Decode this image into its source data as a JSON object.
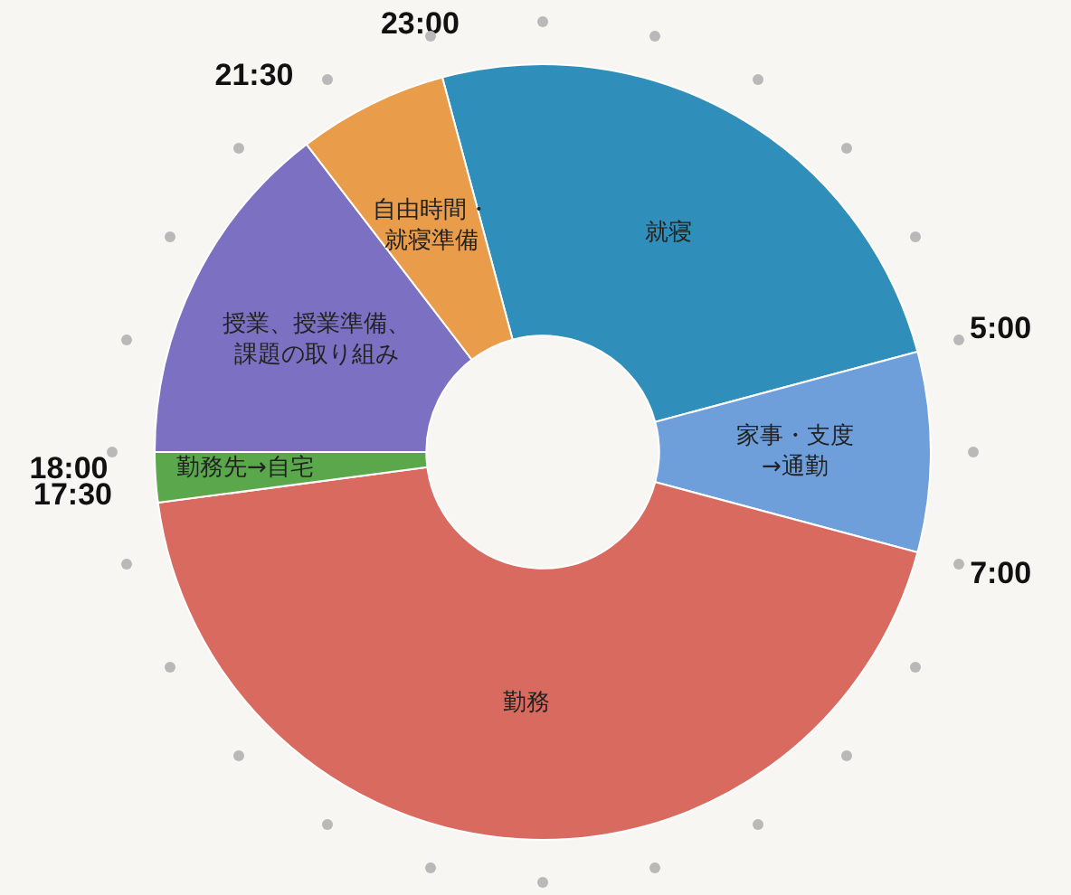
{
  "chart_data": {
    "type": "donut",
    "categories": [
      "就寝",
      "家事・支度→通勤",
      "勤務",
      "勤務先→自宅",
      "授業、授業準備、課題の取り組み",
      "自由時間・就寝準備"
    ],
    "values": [
      25,
      8.33,
      43.75,
      2.09,
      14.58,
      6.25
    ],
    "colors": [
      "#2f8fba",
      "#6e9fdb",
      "#d96a5f",
      "#5aa84b",
      "#7b70c2",
      "#e99c49"
    ],
    "annotations": [
      "23:00",
      "5:00",
      "7:00",
      "17:30",
      "18:00",
      "21:30"
    ]
  }
}
